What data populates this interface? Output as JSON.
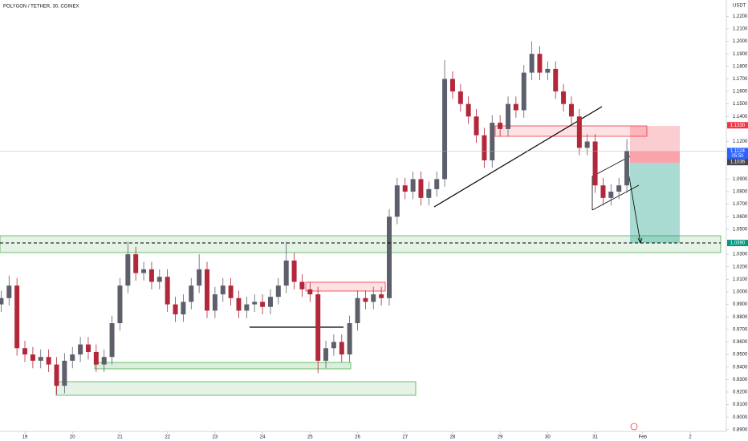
{
  "chart_data": {
    "type": "candlestick",
    "title": "POLYGON / TETHER, 30, COINEX",
    "y_unit": "USDT",
    "up_color": "#5d606b",
    "down_color": "#b2283a",
    "x": [
      18.5,
      18.667,
      18.833,
      19,
      19.167,
      19.333,
      19.5,
      19.667,
      19.833,
      20,
      20.167,
      20.333,
      20.5,
      20.667,
      20.833,
      21,
      21.167,
      21.333,
      21.5,
      21.667,
      21.833,
      22,
      22.167,
      22.333,
      22.5,
      22.667,
      22.833,
      23,
      23.167,
      23.333,
      23.5,
      23.667,
      23.833,
      24,
      24.167,
      24.333,
      24.5,
      24.667,
      24.833,
      25,
      25.167,
      25.333,
      25.5,
      25.667,
      25.833,
      26,
      26.167,
      26.333,
      26.5,
      26.667,
      26.833,
      27,
      27.167,
      27.333,
      27.5,
      27.667,
      27.833,
      28,
      28.167,
      28.333,
      28.5,
      28.667,
      28.833,
      29,
      29.167,
      29.333,
      29.5,
      29.667,
      29.833,
      30,
      30.167,
      30.333,
      30.5,
      30.667,
      30.833,
      31,
      31.167,
      31.333,
      31.5,
      31.667
    ],
    "open": [
      0.99,
      0.995,
      1.005,
      0.955,
      0.95,
      0.945,
      0.948,
      0.942,
      0.925,
      0.945,
      0.95,
      0.958,
      0.952,
      0.942,
      0.948,
      0.975,
      1.005,
      1.03,
      1.015,
      1.018,
      1.008,
      1.012,
      0.99,
      0.982,
      0.992,
      1.005,
      1.018,
      0.985,
      0.998,
      1.005,
      0.995,
      0.985,
      0.99,
      0.992,
      0.988,
      0.996,
      1.005,
      1.025,
      1.008,
      1.002,
      0.998,
      0.945,
      0.955,
      0.96,
      0.95,
      0.975,
      0.995,
      0.992,
      0.998,
      0.995,
      1.06,
      1.085,
      1.08,
      1.09,
      1.075,
      1.082,
      1.09,
      1.17,
      1.16,
      1.15,
      1.14,
      1.125,
      1.105,
      1.135,
      1.13,
      1.15,
      1.145,
      1.175,
      1.19,
      1.175,
      1.178,
      1.16,
      1.15,
      1.14,
      1.115,
      1.12,
      1.085,
      1.075,
      1.08,
      1.085
    ],
    "high": [
      1.001,
      1.013,
      1.011,
      0.961,
      0.956,
      0.954,
      0.954,
      0.948,
      0.951,
      0.956,
      0.964,
      0.964,
      0.958,
      0.954,
      0.981,
      1.011,
      1.04,
      1.036,
      1.024,
      1.024,
      1.018,
      1.018,
      0.996,
      0.998,
      1.011,
      1.03,
      1.024,
      1.004,
      1.011,
      1.011,
      1.001,
      0.996,
      0.998,
      0.998,
      1.002,
      1.011,
      1.04,
      1.031,
      1.014,
      1.008,
      1.004,
      0.961,
      0.966,
      0.966,
      0.981,
      1.001,
      1.001,
      1.004,
      1.004,
      1.066,
      1.091,
      1.091,
      1.096,
      1.096,
      1.088,
      1.096,
      1.185,
      1.176,
      1.166,
      1.156,
      1.146,
      1.131,
      1.141,
      1.141,
      1.156,
      1.156,
      1.181,
      1.2,
      1.196,
      1.184,
      1.184,
      1.166,
      1.156,
      1.146,
      1.126,
      1.126,
      1.091,
      1.086,
      1.091,
      1.122
    ],
    "low": [
      0.984,
      0.989,
      0.949,
      0.944,
      0.939,
      0.939,
      0.936,
      0.918,
      0.919,
      0.939,
      0.944,
      0.946,
      0.936,
      0.936,
      0.942,
      0.969,
      0.999,
      1.009,
      1.009,
      1.002,
      1.002,
      0.984,
      0.976,
      0.976,
      0.986,
      0.999,
      0.979,
      0.979,
      0.992,
      0.989,
      0.979,
      0.979,
      0.984,
      0.982,
      0.982,
      0.99,
      0.999,
      1.002,
      0.996,
      0.992,
      0.935,
      0.939,
      0.949,
      0.944,
      0.944,
      0.969,
      0.986,
      0.986,
      0.989,
      0.989,
      1.054,
      1.074,
      1.074,
      1.069,
      1.069,
      1.076,
      1.084,
      1.154,
      1.144,
      1.134,
      1.119,
      1.099,
      1.099,
      1.124,
      1.124,
      1.139,
      1.139,
      1.169,
      1.169,
      1.169,
      1.154,
      1.144,
      1.134,
      1.109,
      1.109,
      1.079,
      1.069,
      1.069,
      1.074,
      1.079
    ],
    "close": [
      0.995,
      1.005,
      0.955,
      0.95,
      0.945,
      0.948,
      0.942,
      0.925,
      0.945,
      0.95,
      0.958,
      0.952,
      0.942,
      0.948,
      0.975,
      1.005,
      1.03,
      1.015,
      1.018,
      1.008,
      1.012,
      0.99,
      0.982,
      0.992,
      1.005,
      1.018,
      0.985,
      0.998,
      1.005,
      0.995,
      0.985,
      0.99,
      0.992,
      0.988,
      0.996,
      1.005,
      1.025,
      1.008,
      1.002,
      0.998,
      0.945,
      0.955,
      0.96,
      0.95,
      0.975,
      0.995,
      0.992,
      0.998,
      0.995,
      1.06,
      1.085,
      1.08,
      1.09,
      1.075,
      1.082,
      1.09,
      1.17,
      1.16,
      1.15,
      1.14,
      1.125,
      1.105,
      1.135,
      1.13,
      1.15,
      1.145,
      1.175,
      1.19,
      1.175,
      1.178,
      1.16,
      1.15,
      1.14,
      1.115,
      1.12,
      1.085,
      1.075,
      1.08,
      1.085,
      1.1124
    ],
    "xlim": [
      18.476,
      33.76
    ],
    "xticks": [
      19,
      20,
      21,
      22,
      23,
      24,
      25,
      26,
      27,
      28,
      29,
      30,
      31,
      {
        "value": 32,
        "label": "Feb"
      },
      {
        "value": 33,
        "label": "2"
      }
    ],
    "ylim": [
      0.8886,
      1.233
    ],
    "yticks": [
      {
        "value": 0.89,
        "label": "0.8900"
      },
      {
        "value": 0.9,
        "label": "0.9000"
      },
      {
        "value": 0.91,
        "label": "0.9100"
      },
      {
        "value": 0.92,
        "label": "0.9200"
      },
      {
        "value": 0.93,
        "label": "0.9300"
      },
      {
        "value": 0.94,
        "label": "0.9400"
      },
      {
        "value": 0.95,
        "label": "0.9500"
      },
      {
        "value": 0.96,
        "label": "0.9600"
      },
      {
        "value": 0.97,
        "label": "0.9700"
      },
      {
        "value": 0.98,
        "label": "0.9800"
      },
      {
        "value": 0.99,
        "label": "0.9900"
      },
      {
        "value": 1.0,
        "label": "1.0000"
      },
      {
        "value": 1.01,
        "label": "1.0100"
      },
      {
        "value": 1.02,
        "label": "1.0200"
      },
      {
        "value": 1.03,
        "label": "1.0300"
      },
      {
        "value": 1.05,
        "label": "1.0500"
      },
      {
        "value": 1.06,
        "label": "1.0600"
      },
      {
        "value": 1.07,
        "label": "1.0700"
      },
      {
        "value": 1.08,
        "label": "1.0800"
      },
      {
        "value": 1.09,
        "label": "1.0900"
      },
      {
        "value": 1.12,
        "label": "1.1200"
      },
      {
        "value": 1.14,
        "label": "1.1400"
      },
      {
        "value": 1.15,
        "label": "1.1500"
      },
      {
        "value": 1.16,
        "label": "1.1600"
      },
      {
        "value": 1.17,
        "label": "1.1700"
      },
      {
        "value": 1.18,
        "label": "1.1800"
      },
      {
        "value": 1.19,
        "label": "1.1900"
      },
      {
        "value": 1.2,
        "label": "1.2000"
      },
      {
        "value": 1.21,
        "label": "1.2100"
      },
      {
        "value": 1.22,
        "label": "1.2200"
      }
    ],
    "grid": false,
    "price_labels": [
      {
        "value": 1.133,
        "label": "1.1330",
        "color": "#f23645"
      },
      {
        "value": 1.1124,
        "label": "1.1124",
        "color": "#2962ff",
        "sub": "05:50"
      },
      {
        "value": 1.1036,
        "label": "1.1036",
        "color": "#434651"
      },
      {
        "value": 1.039,
        "label": "1.0390",
        "color": "#089981"
      }
    ]
  }
}
